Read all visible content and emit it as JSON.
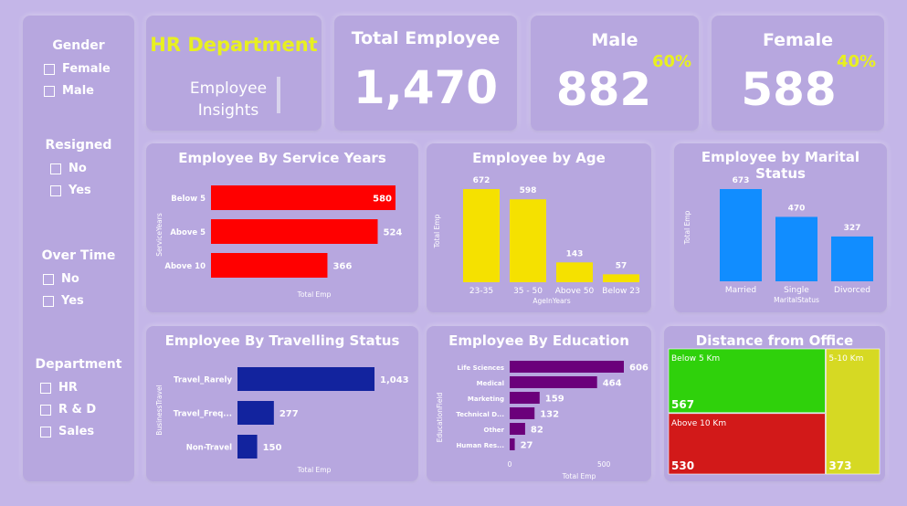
{
  "slicers": {
    "gender": {
      "title": "Gender",
      "options": [
        "Female",
        "Male"
      ]
    },
    "resigned": {
      "title": "Resigned",
      "options": [
        "No",
        "Yes"
      ]
    },
    "overtime": {
      "title": "Over Time",
      "options": [
        "No",
        "Yes"
      ]
    },
    "department": {
      "title": "Department",
      "options": [
        "HR",
        "R & D",
        "Sales"
      ]
    }
  },
  "header": {
    "title": "HR Department",
    "subtitle_line1": "Employee",
    "subtitle_line2": "Insights"
  },
  "kpis": {
    "total": {
      "label": "Total Employee",
      "value": "1,470"
    },
    "male": {
      "label": "Male",
      "value": "882",
      "pct": "60%"
    },
    "female": {
      "label": "Female",
      "value": "588",
      "pct": "40%"
    }
  },
  "colors": {
    "service": "#ff0000",
    "age": "#f5e100",
    "marital": "#118dff",
    "travel": "#12239e",
    "education": "#6b007b",
    "dist_below5": "#2fd10b",
    "dist_above10": "#d21919",
    "dist_5to10": "#d6d923",
    "kpi_pct": "#e8f020",
    "header_title": "#e8f020"
  },
  "chart_data": [
    {
      "id": "service",
      "type": "bar",
      "orientation": "horizontal",
      "title": "Employee By Service Years",
      "xlabel": "Total Emp",
      "ylabel": "ServiceYears",
      "categories": [
        "Below 5",
        "Above 5",
        "Above 10"
      ],
      "values": [
        580,
        524,
        366
      ],
      "value_labels": [
        "580",
        "524",
        "366"
      ]
    },
    {
      "id": "age",
      "type": "bar",
      "orientation": "vertical",
      "title": "Employee by Age",
      "xlabel": "AgeInYears",
      "ylabel": "Total Emp",
      "categories": [
        "23-35",
        "35 - 50",
        "Above 50",
        "Below 23"
      ],
      "values": [
        672,
        598,
        143,
        57
      ],
      "value_labels": [
        "672",
        "598",
        "143",
        "57"
      ]
    },
    {
      "id": "marital",
      "type": "bar",
      "orientation": "vertical",
      "title": "Employee by Marital Status",
      "xlabel": "MaritalStatus",
      "ylabel": "Total Emp",
      "categories": [
        "Married",
        "Single",
        "Divorced"
      ],
      "values": [
        673,
        470,
        327
      ],
      "value_labels": [
        "673",
        "470",
        "327"
      ]
    },
    {
      "id": "travel",
      "type": "bar",
      "orientation": "horizontal",
      "title": "Employee By Travelling Status",
      "xlabel": "Total Emp",
      "ylabel": "BusinessTravel",
      "categories": [
        "Travel_Rarely",
        "Travel_Freq...",
        "Non-Travel"
      ],
      "values": [
        1043,
        277,
        150
      ],
      "value_labels": [
        "1,043",
        "277",
        "150"
      ]
    },
    {
      "id": "education",
      "type": "bar",
      "orientation": "horizontal",
      "title": "Employee By Education",
      "xlabel": "Total Emp",
      "ylabel": "EducationField",
      "categories": [
        "Life Sciences",
        "Medical",
        "Marketing",
        "Technical D...",
        "Other",
        "Human Res..."
      ],
      "values": [
        606,
        464,
        159,
        132,
        82,
        27
      ],
      "value_labels": [
        "606",
        "464",
        "159",
        "132",
        "82",
        "27"
      ],
      "xticks": [
        "0",
        "500"
      ]
    },
    {
      "id": "distance",
      "type": "treemap",
      "title": "Distance from Office",
      "categories": [
        "Below 5 Km",
        "Above 10 Km",
        "5-10 Km"
      ],
      "values": [
        567,
        530,
        373
      ],
      "value_labels": [
        "567",
        "530",
        "373"
      ]
    }
  ]
}
